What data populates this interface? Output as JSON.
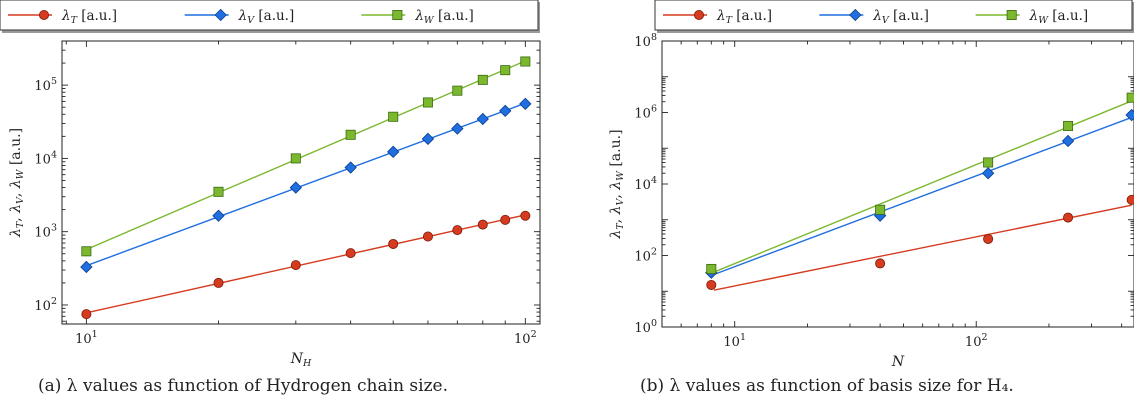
{
  "colors": {
    "T": "#d63a1f",
    "V": "#1f6fe0",
    "W": "#7bb82e"
  },
  "captions": [
    "(a) λ values as function of Hydrogen chain size.",
    "(b) λ values as function of basis size for H₄."
  ],
  "chart_data": [
    {
      "type": "line",
      "xscale": "log",
      "yscale": "log",
      "xlabel": "N_H",
      "ylabel": "λ_T, λ_V, λ_W [a.u.]",
      "xlim": [
        8.8,
        108
      ],
      "ylim": [
        55,
        400000
      ],
      "xticks": [
        10,
        100
      ],
      "yticks": [
        100,
        1000,
        10000,
        100000
      ],
      "legend": "top",
      "series": [
        {
          "name": "λ_T [a.u.]",
          "marker": "circle",
          "fit": true,
          "x": [
            10,
            20,
            30,
            40,
            50,
            60,
            70,
            80,
            90,
            100
          ],
          "y": [
            75,
            200,
            350,
            510,
            680,
            860,
            1050,
            1250,
            1450,
            1650
          ]
        },
        {
          "name": "λ_V [a.u.]",
          "marker": "diamond",
          "fit": true,
          "x": [
            10,
            20,
            30,
            40,
            50,
            60,
            70,
            80,
            90,
            100
          ],
          "y": [
            330,
            1650,
            4000,
            7500,
            12300,
            18500,
            25500,
            34500,
            44500,
            55500
          ]
        },
        {
          "name": "λ_W [a.u.]",
          "marker": "square",
          "fit": true,
          "x": [
            10,
            20,
            30,
            40,
            50,
            60,
            70,
            80,
            90,
            100
          ],
          "y": [
            540,
            3500,
            10000,
            21000,
            37000,
            58000,
            84000,
            118000,
            160000,
            210000
          ]
        }
      ]
    },
    {
      "type": "line",
      "xscale": "log",
      "yscale": "log",
      "xlabel": "N",
      "ylabel": "λ_T, λ_V, λ_W [a.u.]",
      "xlim": [
        5,
        450
      ],
      "ylim": [
        1,
        100000000
      ],
      "xticks": [
        10,
        100
      ],
      "yticks": [
        1,
        100,
        10000,
        1000000,
        100000000
      ],
      "legend": "top",
      "series": [
        {
          "name": "λ_T [a.u.]",
          "marker": "circle",
          "fit_from": 8.2,
          "x": [
            8,
            40,
            112,
            240,
            440
          ],
          "y": [
            15,
            60,
            290,
            1150,
            3600
          ]
        },
        {
          "name": "λ_V [a.u.]",
          "marker": "diamond",
          "fit_from": 8,
          "x": [
            8,
            40,
            112,
            240,
            440
          ],
          "y": [
            33,
            1300,
            20000,
            160000,
            850000
          ]
        },
        {
          "name": "λ_W [a.u.]",
          "marker": "square",
          "fit_from": 8,
          "x": [
            8,
            40,
            112,
            240,
            440
          ],
          "y": [
            42,
            1900,
            40000,
            420000,
            2600000
          ]
        }
      ]
    }
  ]
}
